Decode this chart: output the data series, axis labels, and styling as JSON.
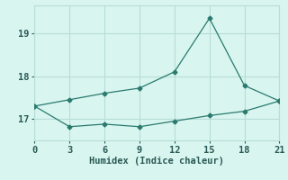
{
  "xlabel": "Humidex (Indice chaleur)",
  "line1_x": [
    0,
    3,
    6,
    9,
    12,
    15,
    18,
    21
  ],
  "line1_y": [
    17.3,
    17.45,
    17.6,
    17.72,
    18.1,
    19.35,
    17.78,
    17.42
  ],
  "line2_x": [
    0,
    3,
    6,
    9,
    12,
    15,
    18,
    21
  ],
  "line2_y": [
    17.3,
    16.82,
    16.88,
    16.82,
    16.95,
    17.08,
    17.18,
    17.42
  ],
  "line_color": "#2a7a6e",
  "bg_color": "#d8f5f0",
  "grid_color": "#b8ddd8",
  "xlim": [
    0,
    21
  ],
  "ylim": [
    16.5,
    19.65
  ],
  "yticks": [
    17,
    18,
    19
  ],
  "xticks": [
    0,
    3,
    6,
    9,
    12,
    15,
    18,
    21
  ],
  "marker": "D",
  "markersize": 2.5
}
